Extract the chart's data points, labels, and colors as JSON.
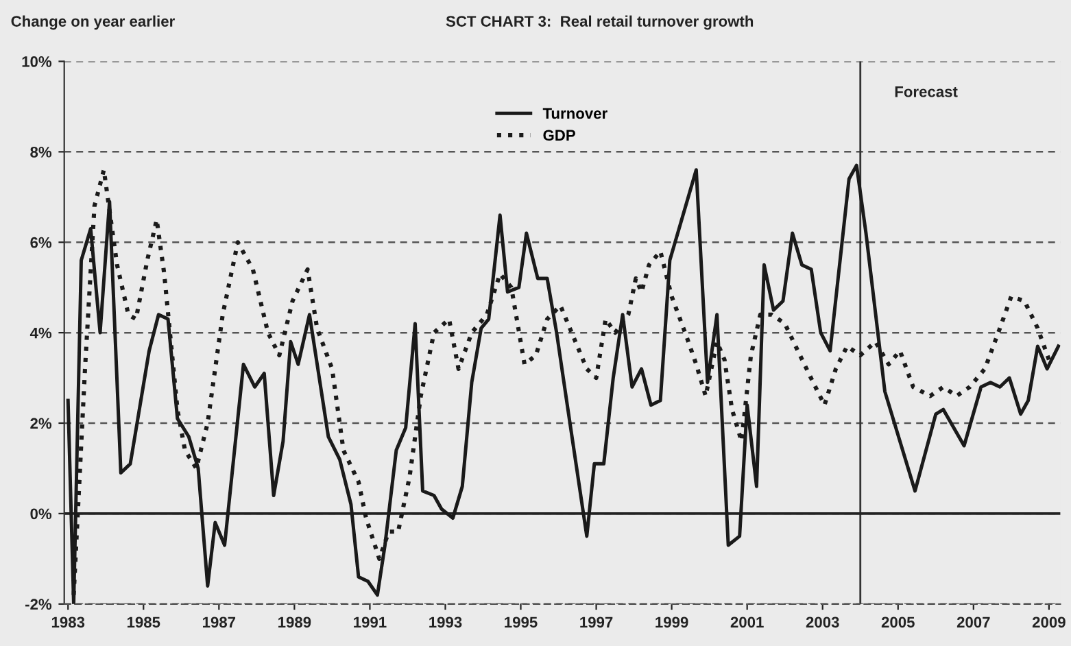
{
  "chart_data": {
    "type": "line",
    "title": "SCT CHART 3:  Real retail turnover growth",
    "ylabel": "Change on year earlier",
    "xlim": [
      1982.9,
      2009.3
    ],
    "xticks": [
      1983,
      1985,
      1987,
      1989,
      1991,
      1993,
      1995,
      1997,
      1999,
      2001,
      2003,
      2005,
      2007,
      2009
    ],
    "ylim": [
      -2,
      10
    ],
    "yticks": [
      {
        "value": -2,
        "label": "-2%"
      },
      {
        "value": 0,
        "label": "0%"
      },
      {
        "value": 2,
        "label": "2%"
      },
      {
        "value": 4,
        "label": "4%"
      },
      {
        "value": 6,
        "label": "6%"
      },
      {
        "value": 8,
        "label": "8%"
      },
      {
        "value": 10,
        "label": "10%"
      }
    ],
    "grid": "y",
    "legend": "top",
    "ref_lines": [
      {
        "axis": "x",
        "value": 2004,
        "label": "Forecast",
        "color": "#333333",
        "line_style": "solid"
      },
      {
        "axis": "y",
        "value": 0,
        "label": null,
        "color": "#222222",
        "line_style": "solid"
      }
    ],
    "series": [
      {
        "name": "Turnover",
        "color": "#1a1a1a",
        "line_style": "solid",
        "x": [
          1983.0,
          1983.15,
          1983.35,
          1983.6,
          1983.85,
          1984.1,
          1984.4,
          1984.65,
          1985.15,
          1985.4,
          1985.65,
          1985.9,
          1986.2,
          1986.45,
          1986.7,
          1986.9,
          1987.15,
          1987.65,
          1987.95,
          1988.2,
          1988.45,
          1988.7,
          1988.9,
          1989.1,
          1989.4,
          1989.9,
          1990.2,
          1990.5,
          1990.7,
          1990.95,
          1991.2,
          1991.4,
          1991.7,
          1991.95,
          1992.2,
          1992.4,
          1992.7,
          1992.9,
          1993.2,
          1993.45,
          1993.7,
          1993.95,
          1994.15,
          1994.45,
          1994.65,
          1994.95,
          1995.15,
          1995.45,
          1995.7,
          1995.95,
          1996.25,
          1996.75,
          1996.95,
          1997.2,
          1997.45,
          1997.7,
          1997.95,
          1998.2,
          1998.45,
          1998.7,
          1998.95,
          1999.65,
          1999.95,
          2000.2,
          2000.5,
          2000.8,
          2001.0,
          2001.25,
          2001.45,
          2001.7,
          2001.95,
          2002.2,
          2002.45,
          2002.7,
          2002.95,
          2003.2,
          2003.7,
          2003.9,
          2004.15,
          2004.65,
          2005.45,
          2006.0,
          2006.2,
          2006.75,
          2007.2,
          2007.45,
          2007.7,
          2007.95,
          2008.25,
          2008.45,
          2008.7,
          2008.95,
          2009.25
        ],
        "values": [
          2.5,
          -2.0,
          5.6,
          6.3,
          4.0,
          6.9,
          0.9,
          1.1,
          3.6,
          4.4,
          4.3,
          2.1,
          1.7,
          1.0,
          -1.6,
          -0.2,
          -0.7,
          3.3,
          2.8,
          3.1,
          0.4,
          1.6,
          3.8,
          3.3,
          4.4,
          1.7,
          1.2,
          0.2,
          -1.4,
          -1.5,
          -1.8,
          -0.7,
          1.4,
          1.9,
          4.2,
          0.5,
          0.4,
          0.1,
          -0.1,
          0.6,
          2.9,
          4.1,
          4.3,
          6.6,
          4.9,
          5.0,
          6.2,
          5.2,
          5.2,
          4.0,
          2.3,
          -0.5,
          1.1,
          1.1,
          3.0,
          4.4,
          2.8,
          3.2,
          2.4,
          2.5,
          5.6,
          7.6,
          2.9,
          4.4,
          -0.7,
          -0.5,
          2.4,
          0.6,
          5.5,
          4.5,
          4.7,
          6.2,
          5.5,
          5.4,
          4.0,
          3.6,
          7.4,
          7.7,
          6.2,
          2.7,
          0.5,
          2.2,
          2.3,
          1.5,
          2.8,
          2.9,
          2.8,
          3.0,
          2.2,
          2.5,
          3.7,
          3.2,
          3.7
        ]
      },
      {
        "name": "GDP",
        "color": "#1a1a1a",
        "line_style": "dotted",
        "x": [
          1983.15,
          1983.45,
          1983.7,
          1983.95,
          1984.3,
          1984.6,
          1984.8,
          1985.1,
          1985.35,
          1985.55,
          1985.9,
          1986.1,
          1986.4,
          1986.7,
          1987.1,
          1987.5,
          1987.9,
          1988.3,
          1988.6,
          1988.95,
          1989.35,
          1989.6,
          1990.0,
          1990.3,
          1990.7,
          1990.9,
          1991.25,
          1991.5,
          1991.75,
          1992.05,
          1992.35,
          1992.7,
          1993.1,
          1993.35,
          1993.7,
          1994.1,
          1994.45,
          1994.75,
          1995.1,
          1995.4,
          1995.7,
          1996.05,
          1996.35,
          1996.75,
          1997.0,
          1997.25,
          1997.5,
          1997.85,
          1998.05,
          1998.2,
          1998.4,
          1998.7,
          1999.0,
          1999.4,
          1999.65,
          1999.9,
          2000.2,
          2000.4,
          2000.6,
          2000.85,
          2001.1,
          2001.35,
          2001.65,
          2002.0,
          2002.4,
          2002.75,
          2003.05,
          2003.35,
          2003.65,
          2004.0,
          2004.4,
          2004.75,
          2005.05,
          2005.4,
          2005.85,
          2006.2,
          2006.55,
          2006.9,
          2007.3,
          2007.7,
          2008.0,
          2008.35,
          2008.7,
          2009.0
        ],
        "values": [
          -1.8,
          3.2,
          6.8,
          7.6,
          5.5,
          4.4,
          4.3,
          5.6,
          6.5,
          5.3,
          2.3,
          1.4,
          1.0,
          2.0,
          4.4,
          6.0,
          5.4,
          4.0,
          3.5,
          4.7,
          5.4,
          4.1,
          3.2,
          1.4,
          0.7,
          -0.1,
          -1.0,
          -0.4,
          -0.4,
          0.8,
          2.6,
          4.0,
          4.3,
          3.2,
          4.0,
          4.4,
          5.3,
          5.0,
          3.3,
          3.5,
          4.3,
          4.6,
          4.0,
          3.2,
          3.0,
          4.3,
          4.0,
          4.4,
          5.2,
          4.9,
          5.5,
          5.8,
          4.8,
          3.9,
          3.3,
          2.6,
          3.8,
          3.4,
          2.3,
          1.6,
          3.5,
          4.4,
          4.4,
          4.2,
          3.5,
          2.9,
          2.4,
          3.2,
          3.7,
          3.5,
          3.8,
          3.3,
          3.6,
          2.8,
          2.6,
          2.8,
          2.6,
          2.8,
          3.2,
          4.1,
          4.8,
          4.7,
          4.1,
          3.4
        ]
      }
    ]
  }
}
